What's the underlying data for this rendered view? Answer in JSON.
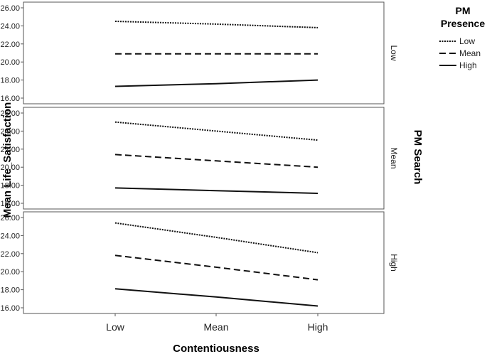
{
  "chart_data": {
    "type": "line",
    "xlabel": "Contentiousness",
    "ylabel": "Mean Life_Satisfaction",
    "categories": [
      "Low",
      "Mean",
      "High"
    ],
    "ylim": [
      16,
      26
    ],
    "yticks": [
      "16.00",
      "18.00",
      "20.00",
      "22.00",
      "24.00",
      "26.00"
    ],
    "legend": {
      "title_line1": "PM",
      "title_line2": "Presence",
      "placement": "top-right",
      "entries": [
        {
          "label": "Low",
          "dash": "dotted"
        },
        {
          "label": "Mean",
          "dash": "dashed"
        },
        {
          "label": "High",
          "dash": "solid"
        }
      ]
    },
    "facet_title": "PM Search",
    "panels": [
      {
        "label": "Low",
        "series": [
          {
            "name": "Low",
            "values": [
              24.5,
              24.2,
              23.8
            ]
          },
          {
            "name": "Mean",
            "values": [
              20.9,
              20.9,
              20.9
            ]
          },
          {
            "name": "High",
            "values": [
              17.3,
              17.6,
              18.0
            ]
          }
        ]
      },
      {
        "label": "Mean",
        "series": [
          {
            "name": "Low",
            "values": [
              25.0,
              24.0,
              23.0
            ]
          },
          {
            "name": "Mean",
            "values": [
              21.4,
              20.7,
              20.0
            ]
          },
          {
            "name": "High",
            "values": [
              17.7,
              17.4,
              17.1
            ]
          }
        ]
      },
      {
        "label": "High",
        "series": [
          {
            "name": "Low",
            "values": [
              25.4,
              23.8,
              22.1
            ]
          },
          {
            "name": "Mean",
            "values": [
              21.8,
              20.5,
              19.1
            ]
          },
          {
            "name": "High",
            "values": [
              18.1,
              17.2,
              16.2
            ]
          }
        ]
      }
    ],
    "grid": false
  }
}
